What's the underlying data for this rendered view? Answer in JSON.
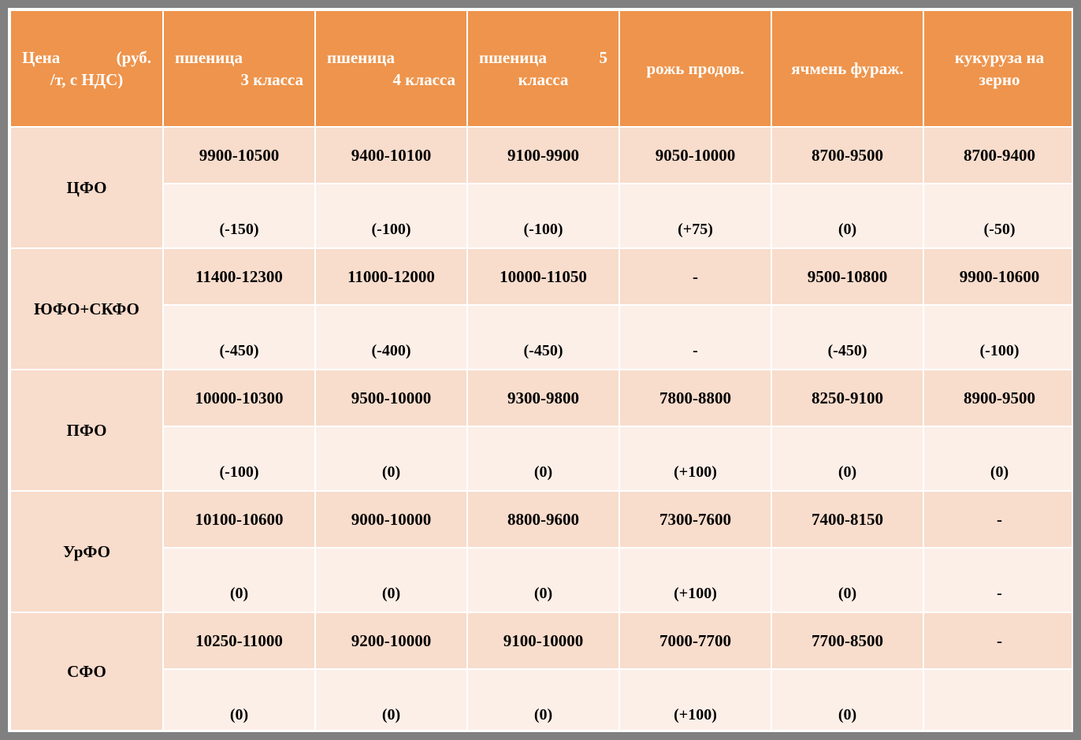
{
  "colors": {
    "page_bg": "#808080",
    "border": "#ffffff",
    "header_bg": "#ee944c",
    "header_fg": "#ffffff",
    "region_bg": "#f8dccc",
    "price_bg": "#f8dccc",
    "delta_bg": "#fcefe8",
    "text": "#000000"
  },
  "header": {
    "c0": {
      "line1_left": "Цена",
      "line1_right": "(руб.",
      "line2": "/т, с НДС)"
    },
    "c1": {
      "line1": "пшеница",
      "line2": "3 класса"
    },
    "c2": {
      "line1": "пшеница",
      "line2": "4 класса"
    },
    "c3": {
      "line1_left": "пшеница",
      "line1_right": "5",
      "line2": "класса"
    },
    "c4": "рожь продов.",
    "c5": "ячмень фураж.",
    "c6": {
      "line1": "кукуруза на",
      "line2": "зерно"
    }
  },
  "regions": [
    {
      "name": "ЦФО",
      "prices": [
        "9900-10500",
        "9400-10100",
        "9100-9900",
        "9050-10000",
        "8700-9500",
        "8700-9400"
      ],
      "deltas": [
        "(-150)",
        "(-100)",
        "(-100)",
        "(+75)",
        "(0)",
        "(-50)"
      ]
    },
    {
      "name": "ЮФО+СКФО",
      "prices": [
        "11400-12300",
        "11000-12000",
        "10000-11050",
        "-",
        "9500-10800",
        "9900-10600"
      ],
      "deltas": [
        "(-450)",
        "(-400)",
        "(-450)",
        "-",
        "(-450)",
        "(-100)"
      ]
    },
    {
      "name": "ПФО",
      "prices": [
        "10000-10300",
        "9500-10000",
        "9300-9800",
        "7800-8800",
        "8250-9100",
        "8900-9500"
      ],
      "deltas": [
        "(-100)",
        "(0)",
        "(0)",
        "(+100)",
        "(0)",
        "(0)"
      ]
    },
    {
      "name": "УрФО",
      "prices": [
        "10100-10600",
        "9000-10000",
        "8800-9600",
        "7300-7600",
        "7400-8150",
        "-"
      ],
      "deltas": [
        "(0)",
        "(0)",
        "(0)",
        "(+100)",
        "(0)",
        "-"
      ]
    },
    {
      "name": "СФО",
      "prices": [
        "10250-11000",
        "9200-10000",
        "9100-10000",
        "7000-7700",
        "7700-8500",
        "-"
      ],
      "deltas": [
        "(0)",
        "(0)",
        "(0)",
        "(+100)",
        "(0)",
        ""
      ]
    }
  ]
}
